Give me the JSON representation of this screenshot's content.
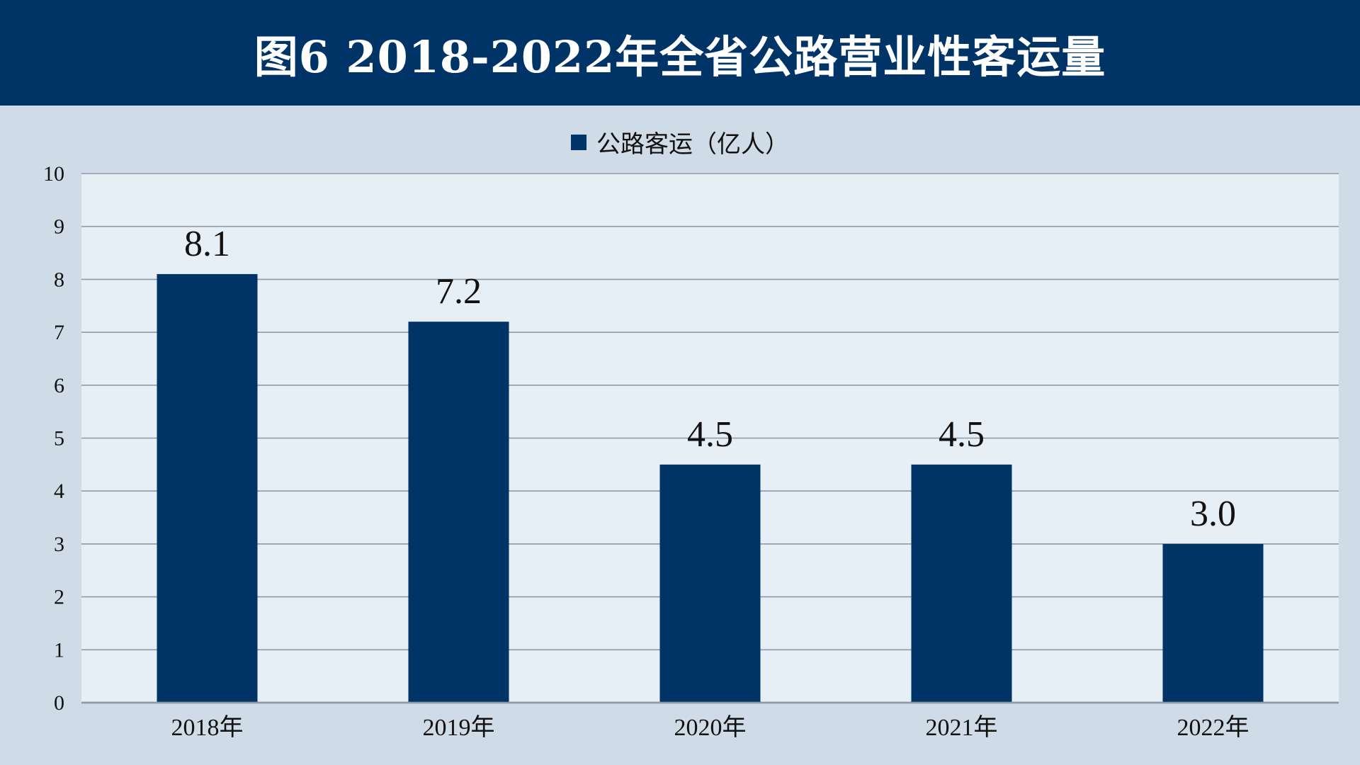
{
  "header": {
    "title": "图6  2018-2022年全省公路营业性客运量"
  },
  "colors": {
    "title_bar": "#003466",
    "bar": "#003466",
    "plot_background": "#e6eef6",
    "page_background": "#cfdbe6",
    "grid": "#8e9aa6"
  },
  "chart_data": {
    "type": "bar",
    "title": "",
    "xlabel": "",
    "ylabel": "",
    "categories": [
      "2018年",
      "2019年",
      "2020年",
      "2021年",
      "2022年"
    ],
    "series": [
      {
        "name": "公路客运（亿人）",
        "values": [
          8.1,
          7.2,
          4.5,
          4.5,
          3.0
        ],
        "labels": [
          "8.1",
          "7.2",
          "4.5",
          "4.5",
          "3.0"
        ]
      }
    ],
    "ylim": [
      0,
      10
    ],
    "yticks": [
      0,
      1,
      2,
      3,
      4,
      5,
      6,
      7,
      8,
      9,
      10
    ],
    "grid": true,
    "legend_position": "top-center"
  }
}
